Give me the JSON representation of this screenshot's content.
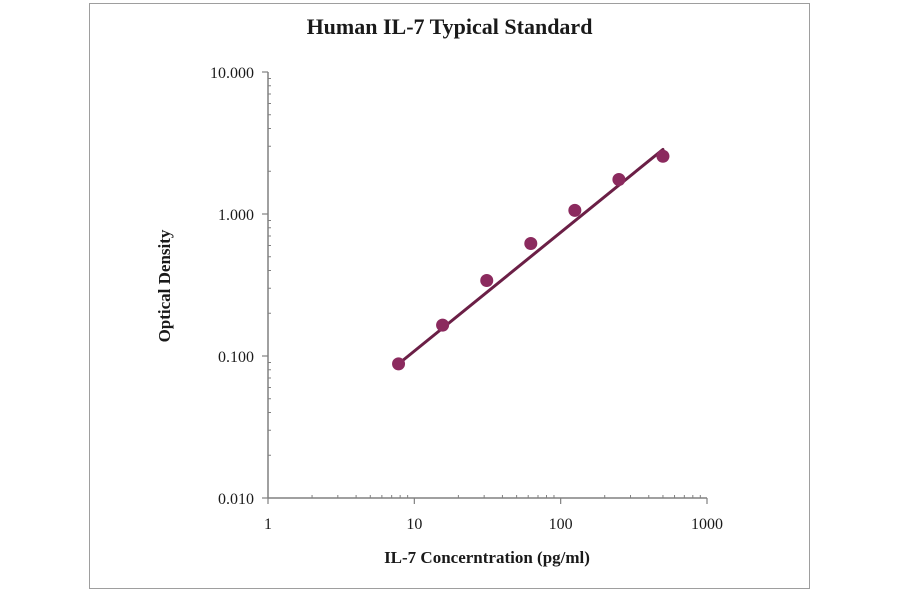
{
  "chart_data": {
    "type": "scatter",
    "title": "Human IL-7 Typical Standard",
    "xlabel": "IL-7 Concerntration (pg/ml)",
    "ylabel": "Optical Density",
    "x_scale": "log",
    "y_scale": "log",
    "xlim": [
      1,
      1000
    ],
    "ylim": [
      0.01,
      10
    ],
    "x_ticks": [
      "1",
      "10",
      "100",
      "1000"
    ],
    "y_ticks": [
      "0.010",
      "0.100",
      "1.000",
      "10.000"
    ],
    "grid": false,
    "legend": "none",
    "series": [
      {
        "points": [
          {
            "x": 7.8,
            "y": 0.088
          },
          {
            "x": 15.6,
            "y": 0.165
          },
          {
            "x": 31.25,
            "y": 0.34
          },
          {
            "x": 62.5,
            "y": 0.62
          },
          {
            "x": 125,
            "y": 1.06
          },
          {
            "x": 250,
            "y": 1.75
          },
          {
            "x": 500,
            "y": 2.55
          }
        ],
        "color": "#8b2a5e"
      }
    ],
    "trendline": {
      "from": {
        "x": 7.8,
        "y": 0.088
      },
      "to": {
        "x": 500,
        "y": 2.85
      },
      "color": "#6b1f46"
    }
  }
}
